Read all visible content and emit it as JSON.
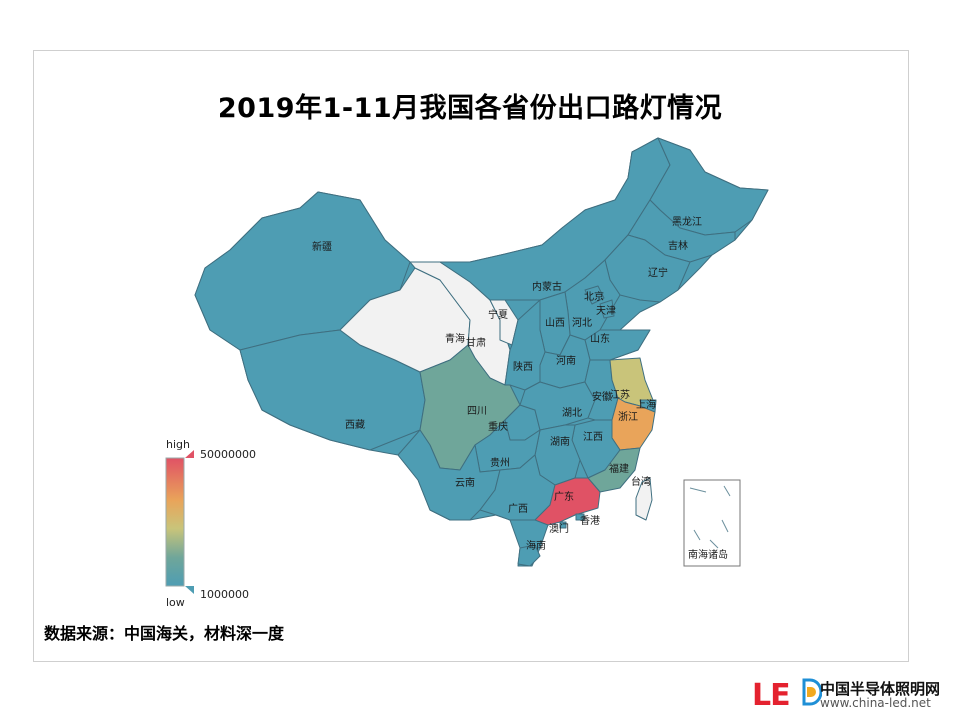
{
  "title": "2019年1-11月我国各省份出口路灯情况",
  "legend": {
    "high_label": "high",
    "low_label": "low",
    "max_value": "50000000",
    "min_value": "1000000",
    "colors": [
      "#4e9db3",
      "#6fa69a",
      "#c9c47a",
      "#e9a45a",
      "#e05265"
    ]
  },
  "map_colors": {
    "default": "#4e9db3",
    "no_data": "#f2f2f2",
    "low_mid": "#6fa69a",
    "mid": "#c9c47a",
    "high_mid": "#e9a45a",
    "high": "#e05265"
  },
  "provinces": [
    {
      "name": "新疆",
      "level": "default"
    },
    {
      "name": "西藏",
      "level": "default"
    },
    {
      "name": "青海",
      "level": "no_data"
    },
    {
      "name": "甘肃",
      "level": "no_data"
    },
    {
      "name": "宁夏",
      "level": "no_data"
    },
    {
      "name": "内蒙古",
      "level": "default"
    },
    {
      "name": "黑龙江",
      "level": "default"
    },
    {
      "name": "吉林",
      "level": "default"
    },
    {
      "name": "辽宁",
      "level": "default"
    },
    {
      "name": "北京",
      "level": "default"
    },
    {
      "name": "天津",
      "level": "default"
    },
    {
      "name": "河北",
      "level": "default"
    },
    {
      "name": "山西",
      "level": "default"
    },
    {
      "name": "山东",
      "level": "default"
    },
    {
      "name": "河南",
      "level": "default"
    },
    {
      "name": "陕西",
      "level": "default"
    },
    {
      "name": "四川",
      "level": "low_mid"
    },
    {
      "name": "重庆",
      "level": "default"
    },
    {
      "name": "湖北",
      "level": "default"
    },
    {
      "name": "安徽",
      "level": "default"
    },
    {
      "name": "江苏",
      "level": "mid"
    },
    {
      "name": "上海",
      "level": "default"
    },
    {
      "name": "浙江",
      "level": "high_mid"
    },
    {
      "name": "江西",
      "level": "default"
    },
    {
      "name": "湖南",
      "level": "default"
    },
    {
      "name": "贵州",
      "level": "default"
    },
    {
      "name": "云南",
      "level": "default"
    },
    {
      "name": "福建",
      "level": "low_mid"
    },
    {
      "name": "台湾",
      "level": "no_data"
    },
    {
      "name": "广西",
      "level": "default"
    },
    {
      "name": "广东",
      "level": "high"
    },
    {
      "name": "香港",
      "level": "default"
    },
    {
      "name": "澳门",
      "level": "default"
    },
    {
      "name": "海南",
      "level": "default"
    }
  ],
  "inset_label": "南海诸岛",
  "source": "数据来源：中国海关，材料深一度",
  "logo": {
    "mark": "LE",
    "name": "中国半导体照明网",
    "url": "www.china-led.net"
  }
}
